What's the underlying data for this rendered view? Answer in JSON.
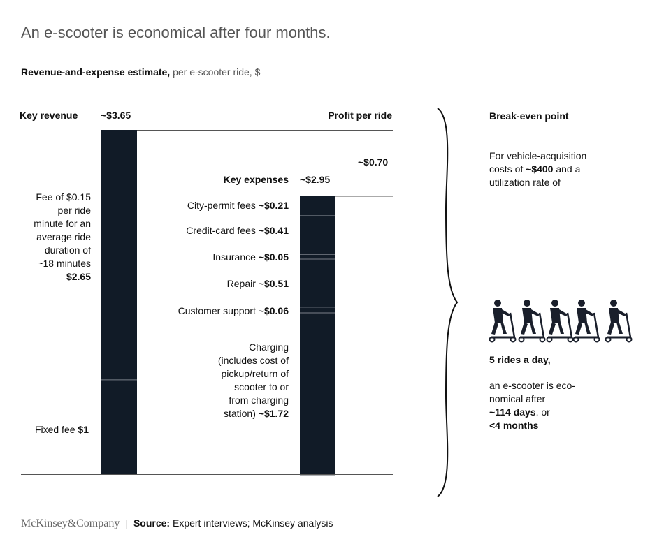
{
  "title": "An e-scooter is economical after four months.",
  "subtitle": {
    "bold": "Revenue-and-expense estimate,",
    "light": "per e-scooter ride, $"
  },
  "chart_data": {
    "type": "bar",
    "title": "Revenue-and-expense estimate, per e-scooter ride, $",
    "ylim": [
      0,
      3.65
    ],
    "revenue": {
      "header": "Key revenue",
      "total_label": "~$3.65",
      "total": 3.65,
      "segments": [
        {
          "name": "Fixed fee",
          "value": 1.0
        },
        {
          "name": "Fee of $0.15 per ride minute for an average ride duration of ~18 minutes",
          "value": 2.65
        }
      ]
    },
    "expenses": {
      "header": "Key expenses",
      "total_label": "~$2.95",
      "total": 2.95,
      "segments": [
        {
          "name": "City-permit fees",
          "value": 0.21
        },
        {
          "name": "Credit-card fees",
          "value": 0.41
        },
        {
          "name": "Insurance",
          "value": 0.05
        },
        {
          "name": "Repair",
          "value": 0.51
        },
        {
          "name": "Customer support",
          "value": 0.06
        },
        {
          "name": "Charging",
          "value": 1.72
        }
      ]
    },
    "profit": {
      "header": "Profit per ride",
      "label": "~$0.70",
      "value": 0.7
    }
  },
  "labels": {
    "rev_text_1": "Fee of $0.15",
    "rev_text_2": "per ride",
    "rev_text_3": "minute for an",
    "rev_text_4": "average ride",
    "rev_text_5": "duration of",
    "rev_text_6": "~18 minutes",
    "rev_text_value": "$2.65",
    "fixed_name": "Fixed fee",
    "fixed_value": "$1",
    "city_name": "City-permit fees",
    "city_value": "~$0.21",
    "credit_name": "Credit-card fees",
    "credit_value": "~$0.41",
    "ins_name": "Insurance",
    "ins_value": "~$0.05",
    "repair_name": "Repair",
    "repair_value": "~$0.51",
    "cs_name": "Customer support",
    "cs_value": "~$0.06",
    "charging_1": "Charging",
    "charging_2": "(includes cost of",
    "charging_3": "pickup/return of",
    "charging_4": "scooter to or",
    "charging_5": "from charging",
    "charging_6": "station)",
    "charging_value": "~$1.72"
  },
  "break_even": {
    "header": "Break-even point",
    "line1": "For vehicle-acquisition",
    "line2_pre": "costs of ",
    "line2_bold": "~$400",
    "line2_post": " and a",
    "line3": "utilization rate of",
    "rides": "5 rides a day,",
    "line4": "an e-scooter is eco-",
    "line5": "nomical after",
    "days": "~114 days",
    "days_post": ", or",
    "months": "<4 months"
  },
  "footer": {
    "logo": "McKinsey&Company",
    "source_label": "Source:",
    "source_text": "Expert interviews; McKinsey analysis"
  },
  "colors": {
    "bar": "#111b27",
    "divider": "#7a7f88",
    "rule": "#555555"
  }
}
